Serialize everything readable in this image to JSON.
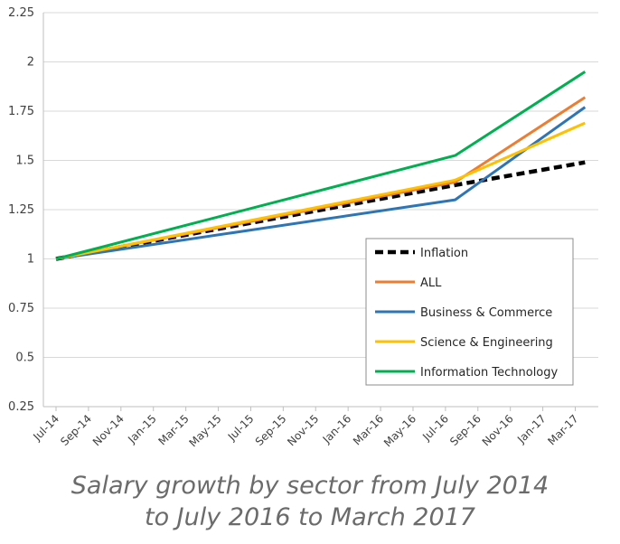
{
  "chart_data": {
    "type": "line",
    "title": "Salary growth by sector from July 2014 to July 2016 to March 2017",
    "caption_lines": [
      "Salary growth by sector from July 2014",
      "to July 2016 to March 2017"
    ],
    "xlabel": "",
    "ylabel": "",
    "categories": [
      "Jul-14",
      "Sep-14",
      "Nov-14",
      "Jan-15",
      "Mar-15",
      "May-15",
      "Jul-15",
      "Sep-15",
      "Nov-15",
      "Jan-16",
      "Mar-16",
      "May-16",
      "Jul-16",
      "Sep-16",
      "Nov-16",
      "Jan-17",
      "Mar-17"
    ],
    "x_index_range": [
      0,
      16
    ],
    "ylim": [
      0.25,
      2.25
    ],
    "yticks": [
      "0.25",
      "0.5",
      "0.75",
      "1",
      "1.25",
      "1.5",
      "1.75",
      "2",
      "2.25"
    ],
    "grid": true,
    "legend_position": "center-right",
    "series": [
      {
        "name": "Inflation",
        "color": "#000000",
        "dashed": true,
        "points": [
          {
            "x": 0,
            "y": 1.0
          },
          {
            "x": 12.3,
            "y": 1.375
          },
          {
            "x": 16.3,
            "y": 1.49
          }
        ]
      },
      {
        "name": "ALL",
        "color": "#ED7D31",
        "dashed": false,
        "points": [
          {
            "x": 0,
            "y": 1.0
          },
          {
            "x": 12.3,
            "y": 1.39
          },
          {
            "x": 16.3,
            "y": 1.82
          }
        ]
      },
      {
        "name": "Business & Commerce",
        "color": "#2E75B6",
        "dashed": false,
        "points": [
          {
            "x": 0,
            "y": 1.0
          },
          {
            "x": 12.3,
            "y": 1.3
          },
          {
            "x": 16.3,
            "y": 1.77
          }
        ]
      },
      {
        "name": "Science & Engineering",
        "color": "#FFC000",
        "dashed": false,
        "points": [
          {
            "x": 0,
            "y": 1.0
          },
          {
            "x": 12.3,
            "y": 1.4
          },
          {
            "x": 16.3,
            "y": 1.69
          }
        ]
      },
      {
        "name": "Information Technology",
        "color": "#00B050",
        "dashed": false,
        "points": [
          {
            "x": 0,
            "y": 1.0
          },
          {
            "x": 12.3,
            "y": 1.525
          },
          {
            "x": 16.3,
            "y": 1.95
          }
        ]
      }
    ]
  }
}
